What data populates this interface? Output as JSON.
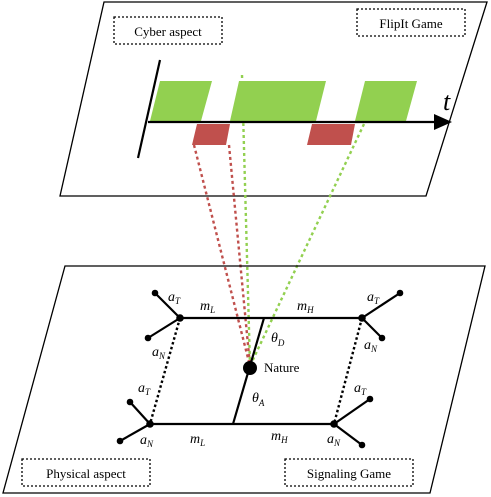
{
  "cyber_plane": {
    "left_box_label": "Cyber aspect",
    "right_box_label": "FlipIt Game",
    "axis_label": "t",
    "colors": {
      "defender": "#92d050",
      "attacker": "#c0504d"
    }
  },
  "physical_plane": {
    "left_box_label": "Physical aspect",
    "right_box_label": "Signaling Game",
    "nature_label": "Nature",
    "theta_D": {
      "base": "θ",
      "sub": "D"
    },
    "theta_A": {
      "base": "θ",
      "sub": "A"
    },
    "m_L": {
      "base": "m",
      "sub": "L"
    },
    "m_H": {
      "base": "m",
      "sub": "H"
    },
    "a_T": {
      "base": "a",
      "sub": "T"
    },
    "a_N": {
      "base": "a",
      "sub": "N"
    }
  }
}
